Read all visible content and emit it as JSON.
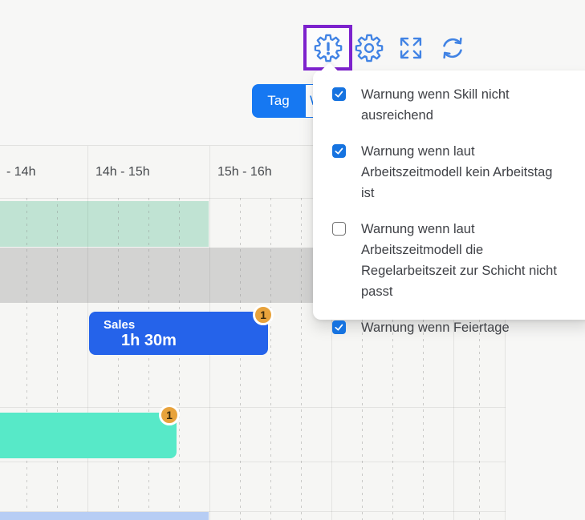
{
  "toolbar": {
    "icons": [
      "warning-settings",
      "settings",
      "expand-fullscreen",
      "refresh"
    ],
    "view_day_label": "Tag",
    "view_week_label_partial": "W",
    "highlight_color": "#7d22cd",
    "icon_color": "#4183e4",
    "accent_color": "#1678f2"
  },
  "warnings_dropdown": {
    "items": [
      {
        "label": "Warnung wenn Skill nicht ausreichend",
        "checked": true
      },
      {
        "label": "Warnung wenn laut Arbeitszeitmodell kein Arbeitstag ist",
        "checked": true
      },
      {
        "label": "Warnung wenn laut Arbeitszeitmodell die Regelarbeitszeit zur Schicht nicht passt",
        "checked": false
      },
      {
        "label": "Warnung wenn Feiertage",
        "checked": true
      }
    ],
    "checkbox_color": "#1673e0"
  },
  "timeline": {
    "column_headers": [
      "- 14h",
      "14h - 15h",
      "15h - 16h"
    ],
    "events": [
      {
        "title": "Sales",
        "duration": "1h 30m",
        "badge_count": "1",
        "color": "#2563ea"
      },
      {
        "title": "",
        "duration": "",
        "badge_count": "1",
        "color": "#57e9c8"
      }
    ],
    "bands": [
      {
        "name": "availability-band",
        "color": "#c0e3d3"
      },
      {
        "name": "blocked-band",
        "color": "#d3d3d2"
      },
      {
        "name": "planned-strip",
        "color": "#b7cdf4"
      }
    ],
    "badge_color": "#e8a33c"
  }
}
